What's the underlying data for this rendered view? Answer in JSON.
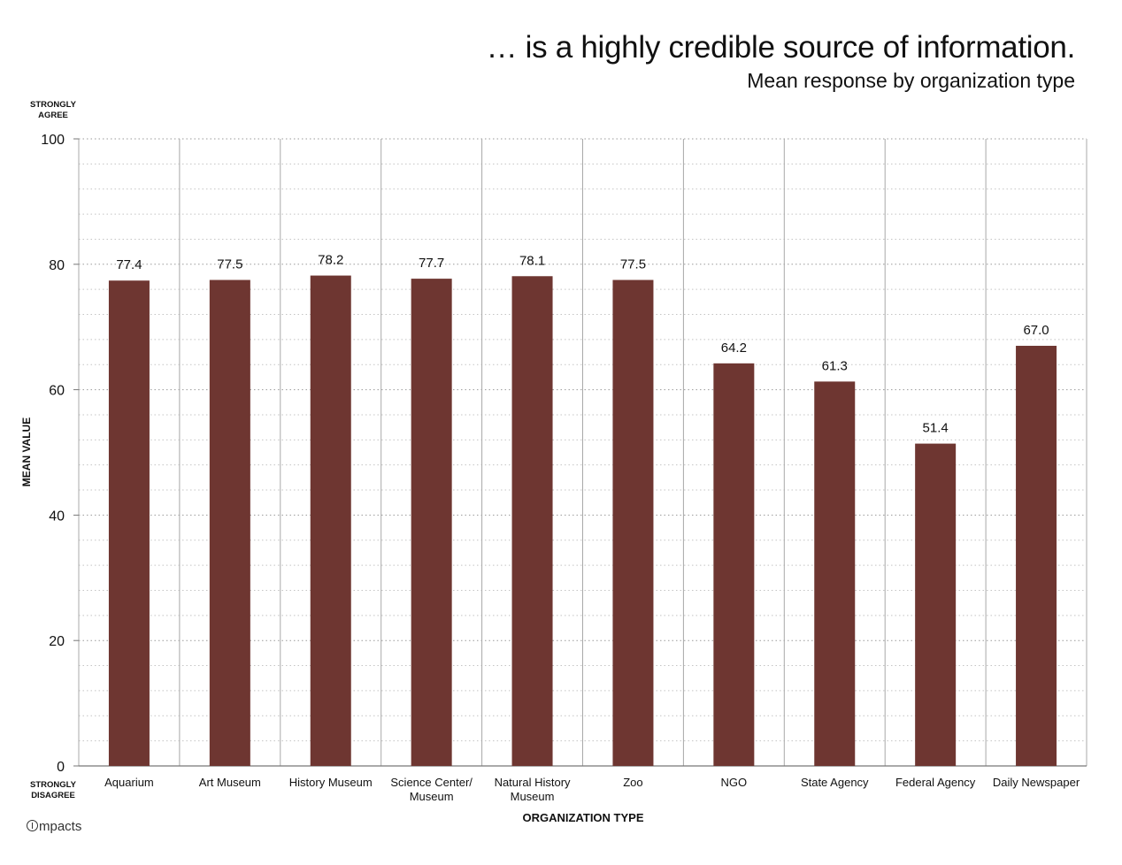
{
  "chart_data": {
    "type": "bar",
    "title": "… is a highly credible source of information.",
    "subtitle": "Mean response by organization type",
    "xlabel": "ORGANIZATION TYPE",
    "ylabel": "MEAN VALUE",
    "ylim": [
      0,
      100
    ],
    "yticks": [
      0,
      20,
      40,
      60,
      80,
      100
    ],
    "ytick_labels": [
      "0",
      "20",
      "40",
      "60",
      "80",
      "100"
    ],
    "y_anchor_top": "STRONGLY AGREE",
    "y_anchor_bottom": "STRONGLY DISAGREE",
    "categories": [
      "Aquarium",
      "Art Museum",
      "History Museum",
      "Science Center/ Museum",
      "Natural History Museum",
      "Zoo",
      "NGO",
      "State Agency",
      "Federal Agency",
      "Daily Newspaper"
    ],
    "category_lines": [
      [
        "Aquarium"
      ],
      [
        "Art Museum"
      ],
      [
        "History Museum"
      ],
      [
        "Science Center/",
        "Museum"
      ],
      [
        "Natural History",
        "Museum"
      ],
      [
        "Zoo"
      ],
      [
        "NGO"
      ],
      [
        "State Agency"
      ],
      [
        "Federal Agency"
      ],
      [
        "Daily Newspaper"
      ]
    ],
    "values": [
      77.4,
      77.5,
      78.2,
      77.7,
      78.1,
      77.5,
      64.2,
      61.3,
      51.4,
      67.0
    ],
    "value_labels": [
      "77.4",
      "77.5",
      "78.2",
      "77.7",
      "78.1",
      "77.5",
      "64.2",
      "61.3",
      "51.4",
      "67.0"
    ],
    "bar_color": "#6e3631",
    "grid": "dotted horizontal minor grid, vertical category separators",
    "legend": "none"
  },
  "brand": {
    "name": "mpacts"
  }
}
